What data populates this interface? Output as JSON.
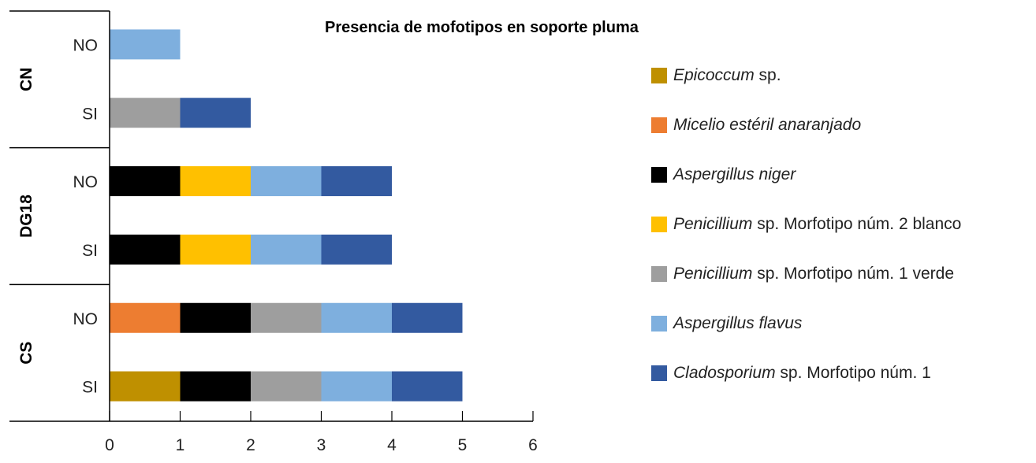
{
  "chart_data": {
    "type": "bar",
    "orientation": "horizontal",
    "stacked": true,
    "title": "Presencia de mofotipos en soporte pluma",
    "xlim": [
      0,
      6
    ],
    "xticks": [
      "0",
      "1",
      "2",
      "3",
      "4",
      "5",
      "6"
    ],
    "groups": [
      {
        "name": "CN",
        "rows": [
          "NO",
          "SI"
        ]
      },
      {
        "name": "DG18",
        "rows": [
          "NO",
          "SI"
        ]
      },
      {
        "name": "CS",
        "rows": [
          "NO",
          "SI"
        ]
      }
    ],
    "series": [
      {
        "name": "Epicoccum sp.",
        "italic": "Epicoccum",
        "rest": " sp.",
        "color": "#BF9000",
        "values": [
          0,
          0,
          0,
          0,
          0,
          1
        ]
      },
      {
        "name": "Micelio estéril anaranjado",
        "italic": "Micelio estéril anaranjado",
        "rest": "",
        "color": "#ED7D31",
        "values": [
          0,
          0,
          0,
          0,
          1,
          0
        ]
      },
      {
        "name": "Aspergillus niger",
        "italic": "Aspergillus niger",
        "rest": "",
        "color": "#000000",
        "values": [
          0,
          0,
          1,
          1,
          1,
          1
        ]
      },
      {
        "name": "Penicillium sp. Morfotipo núm. 2 blanco",
        "italic": "Penicillium",
        "rest": " sp. Morfotipo núm. 2 blanco",
        "color": "#FFC000",
        "values": [
          0,
          0,
          1,
          1,
          0,
          0
        ]
      },
      {
        "name": "Penicillium sp. Morfotipo núm. 1 verde",
        "italic": "Penicillium",
        "rest": " sp. Morfotipo núm. 1 verde",
        "color": "#9E9E9E",
        "values": [
          0,
          1,
          0,
          0,
          1,
          1
        ]
      },
      {
        "name": "Aspergillus flavus",
        "italic": "Aspergillus flavus",
        "rest": "",
        "color": "#7EAFDE",
        "values": [
          1,
          0,
          1,
          1,
          1,
          1
        ]
      },
      {
        "name": "Cladosporium sp. Morfotipo núm. 1",
        "italic": "Cladosporium",
        "rest": " sp. Morfotipo núm. 1",
        "color": "#335AA0",
        "values": [
          0,
          1,
          1,
          1,
          1,
          1
        ]
      }
    ],
    "legend_position": "right"
  }
}
